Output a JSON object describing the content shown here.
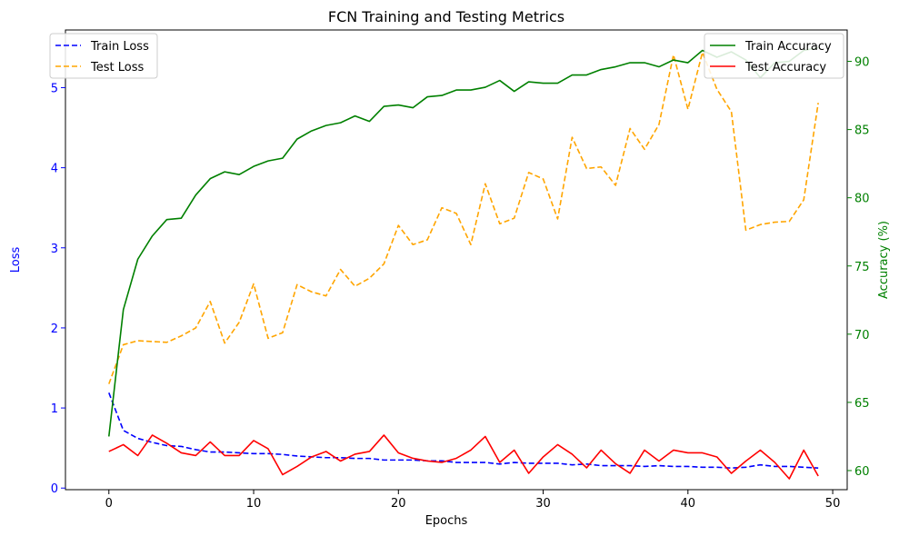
{
  "chart_data": {
    "type": "line",
    "title": "FCN Training and Testing Metrics",
    "xlabel": "Epochs",
    "ylabel_left": "Loss",
    "ylabel_right": "Accuracy (%)",
    "left_axis_color": "#0000ff",
    "right_axis_color": "#008000",
    "xlim": [
      -3,
      51
    ],
    "ylim_left": [
      -0.02,
      5.72
    ],
    "ylim_right": [
      58.6,
      92.3
    ],
    "xticks": [
      0,
      10,
      20,
      30,
      40,
      50
    ],
    "yticks_left": [
      0,
      1,
      2,
      3,
      4,
      5
    ],
    "yticks_right": [
      60,
      65,
      70,
      75,
      80,
      85,
      90
    ],
    "grid": false,
    "legend_left": "top-left",
    "legend_right": "top-right",
    "x": [
      0,
      1,
      2,
      3,
      4,
      5,
      6,
      7,
      8,
      9,
      10,
      11,
      12,
      13,
      14,
      15,
      16,
      17,
      18,
      19,
      20,
      21,
      22,
      23,
      24,
      25,
      26,
      27,
      28,
      29,
      30,
      31,
      32,
      33,
      34,
      35,
      36,
      37,
      38,
      39,
      40,
      41,
      42,
      43,
      44,
      45,
      46,
      47,
      48,
      49
    ],
    "series": [
      {
        "name": "Train Loss",
        "axis": "left",
        "color": "#0000ff",
        "style": "dashed",
        "values": [
          1.19,
          0.72,
          0.62,
          0.57,
          0.53,
          0.52,
          0.48,
          0.45,
          0.45,
          0.44,
          0.43,
          0.43,
          0.42,
          0.4,
          0.39,
          0.38,
          0.38,
          0.37,
          0.37,
          0.35,
          0.35,
          0.35,
          0.34,
          0.34,
          0.32,
          0.32,
          0.32,
          0.3,
          0.32,
          0.31,
          0.31,
          0.31,
          0.29,
          0.3,
          0.28,
          0.28,
          0.28,
          0.27,
          0.28,
          0.27,
          0.27,
          0.26,
          0.26,
          0.25,
          0.26,
          0.29,
          0.27,
          0.27,
          0.26,
          0.25
        ]
      },
      {
        "name": "Test Loss",
        "axis": "left",
        "color": "#ffa500",
        "style": "dashed",
        "values": [
          1.3,
          1.79,
          1.84,
          1.83,
          1.82,
          1.9,
          2.0,
          2.33,
          1.81,
          2.07,
          2.55,
          1.87,
          1.94,
          2.54,
          2.45,
          2.4,
          2.73,
          2.52,
          2.62,
          2.8,
          3.28,
          3.04,
          3.1,
          3.5,
          3.43,
          3.04,
          3.8,
          3.3,
          3.37,
          3.94,
          3.86,
          3.36,
          4.38,
          3.99,
          4.01,
          3.78,
          4.49,
          4.23,
          4.54,
          5.41,
          4.73,
          5.44,
          4.98,
          4.7,
          3.22,
          3.29,
          3.32,
          3.33,
          3.6,
          4.81
        ]
      },
      {
        "name": "Train Accuracy",
        "axis": "right",
        "color": "#008000",
        "style": "solid",
        "values": [
          62.5,
          71.8,
          75.5,
          77.2,
          78.4,
          78.5,
          80.2,
          81.4,
          81.9,
          81.7,
          82.3,
          82.7,
          82.9,
          84.3,
          84.9,
          85.3,
          85.5,
          86.0,
          85.6,
          86.7,
          86.8,
          86.6,
          87.4,
          87.5,
          87.9,
          87.9,
          88.1,
          88.6,
          87.8,
          88.5,
          88.4,
          88.4,
          89.0,
          89.0,
          89.4,
          89.6,
          89.9,
          89.9,
          89.6,
          90.1,
          89.9,
          90.8,
          90.3,
          90.7,
          90.1,
          88.8,
          89.9,
          90.0,
          90.8,
          91.0
        ]
      },
      {
        "name": "Test Accuracy",
        "axis": "right",
        "color": "#ff0000",
        "style": "solid",
        "values": [
          61.4,
          61.9,
          61.1,
          62.6,
          62.0,
          61.3,
          61.1,
          62.1,
          61.1,
          61.1,
          62.2,
          61.6,
          59.7,
          60.3,
          61.0,
          61.4,
          60.7,
          61.2,
          61.4,
          62.6,
          61.3,
          60.9,
          60.7,
          60.6,
          60.9,
          61.5,
          62.5,
          60.6,
          61.5,
          59.8,
          61.0,
          61.9,
          61.2,
          60.2,
          61.5,
          60.5,
          59.8,
          61.5,
          60.7,
          61.5,
          61.3,
          61.3,
          61.0,
          59.8,
          60.7,
          61.5,
          60.6,
          59.4,
          61.5,
          59.6
        ]
      }
    ]
  }
}
